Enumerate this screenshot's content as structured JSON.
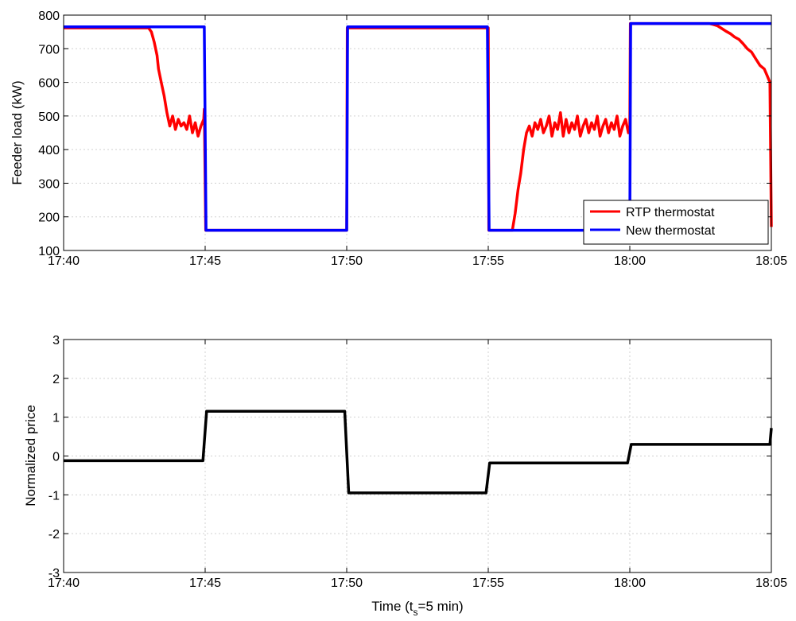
{
  "chart_data": [
    {
      "type": "line",
      "title": "",
      "xlabel": "",
      "ylabel": "Feeder load (kW)",
      "xlim": [
        0,
        25
      ],
      "ylim": [
        100,
        800
      ],
      "x_ticks": [
        0,
        5,
        10,
        15,
        20,
        25
      ],
      "x_tick_labels": [
        "17:40",
        "17:45",
        "17:50",
        "17:55",
        "18:00",
        "18:05"
      ],
      "y_ticks": [
        100,
        200,
        300,
        400,
        500,
        600,
        700,
        800
      ],
      "y_tick_labels": [
        "100",
        "200",
        "300",
        "400",
        "500",
        "600",
        "700",
        "800"
      ],
      "grid": true,
      "legend_position": "bottom-right",
      "series": [
        {
          "name": "RTP thermostat",
          "color": "#ff0000",
          "x": [
            0,
            3.0,
            3.1,
            3.2,
            3.3,
            3.35,
            3.45,
            3.55,
            3.65,
            3.75,
            3.85,
            3.95,
            4.05,
            4.15,
            4.25,
            4.35,
            4.45,
            4.55,
            4.65,
            4.75,
            4.85,
            4.95,
            4.97,
            5.02,
            10.0,
            10.02,
            15.0,
            15.02,
            15.85,
            15.95,
            16.05,
            16.15,
            16.25,
            16.35,
            16.45,
            16.55,
            16.65,
            16.75,
            16.85,
            16.95,
            17.05,
            17.15,
            17.25,
            17.35,
            17.45,
            17.55,
            17.65,
            17.75,
            17.85,
            17.95,
            18.05,
            18.15,
            18.25,
            18.35,
            18.45,
            18.55,
            18.65,
            18.75,
            18.85,
            18.95,
            19.05,
            19.15,
            19.25,
            19.35,
            19.45,
            19.55,
            19.65,
            19.75,
            19.85,
            19.95,
            20.0,
            20.02,
            22.8,
            22.95,
            23.1,
            23.25,
            23.4,
            23.55,
            23.7,
            23.85,
            24.0,
            24.15,
            24.3,
            24.45,
            24.6,
            24.75,
            24.85,
            24.95,
            25.0
          ],
          "y": [
            762,
            762,
            750,
            720,
            680,
            640,
            600,
            560,
            510,
            470,
            500,
            460,
            490,
            470,
            480,
            460,
            500,
            450,
            480,
            440,
            470,
            490,
            520,
            160,
            160,
            762,
            762,
            160,
            160,
            210,
            280,
            330,
            400,
            450,
            470,
            440,
            480,
            460,
            490,
            450,
            470,
            500,
            440,
            480,
            460,
            510,
            440,
            490,
            450,
            480,
            460,
            500,
            440,
            470,
            490,
            450,
            480,
            460,
            500,
            440,
            470,
            490,
            450,
            480,
            460,
            500,
            440,
            470,
            490,
            450,
            470,
            775,
            775,
            772,
            768,
            760,
            752,
            745,
            735,
            728,
            715,
            700,
            690,
            670,
            650,
            640,
            620,
            600,
            170
          ]
        },
        {
          "name": "New thermostat",
          "color": "#0000ff",
          "x": [
            0,
            4.97,
            5.03,
            10.0,
            10.03,
            14.97,
            15.03,
            20.0,
            20.03,
            25.0
          ],
          "y": [
            765,
            765,
            160,
            160,
            765,
            765,
            160,
            160,
            775,
            775
          ]
        }
      ]
    },
    {
      "type": "line",
      "title": "",
      "xlabel": "Time (t",
      "xlabel_sub": "s",
      "xlabel_suffix": "=5 min)",
      "ylabel": "Normalized price",
      "xlim": [
        0,
        25
      ],
      "ylim": [
        -3,
        3
      ],
      "x_ticks": [
        0,
        5,
        10,
        15,
        20,
        25
      ],
      "x_tick_labels": [
        "17:40",
        "17:45",
        "17:50",
        "17:55",
        "18:00",
        "18:05"
      ],
      "y_ticks": [
        -3,
        -2,
        -1,
        0,
        1,
        2,
        3
      ],
      "y_tick_labels": [
        "-3",
        "-2",
        "-1",
        "0",
        "1",
        "2",
        "3"
      ],
      "grid": true,
      "series": [
        {
          "color": "#000000",
          "x": [
            0,
            4.92,
            5.05,
            9.93,
            10.07,
            14.92,
            15.05,
            19.92,
            20.05,
            24.95,
            25.0
          ],
          "y": [
            -0.12,
            -0.12,
            1.15,
            1.15,
            -0.95,
            -0.95,
            -0.18,
            -0.18,
            0.3,
            0.3,
            0.72
          ]
        }
      ]
    }
  ]
}
